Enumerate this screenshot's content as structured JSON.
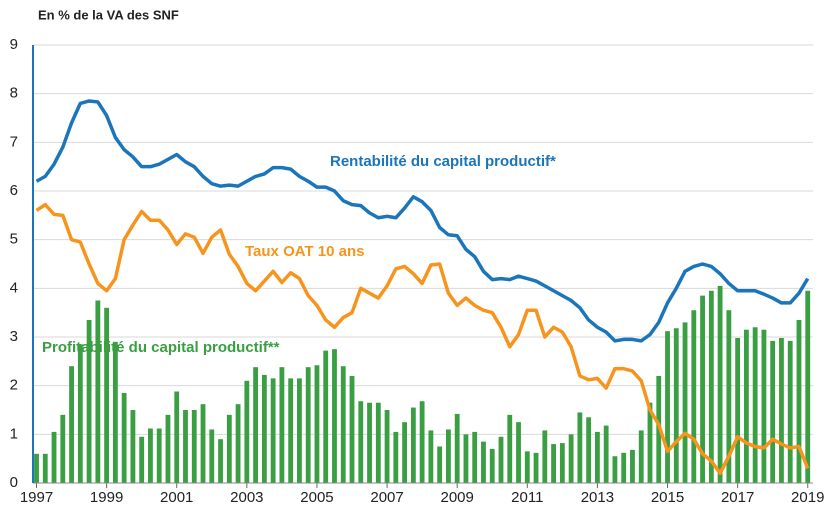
{
  "chart_data": {
    "type": "bar-line",
    "title": "En % de la VA des SNF",
    "x": [
      1997,
      1997.25,
      1997.5,
      1997.75,
      1998,
      1998.25,
      1998.5,
      1998.75,
      1999,
      1999.25,
      1999.5,
      1999.75,
      2000,
      2000.25,
      2000.5,
      2000.75,
      2001,
      2001.25,
      2001.5,
      2001.75,
      2002,
      2002.25,
      2002.5,
      2002.75,
      2003,
      2003.25,
      2003.5,
      2003.75,
      2004,
      2004.25,
      2004.5,
      2004.75,
      2005,
      2005.25,
      2005.5,
      2005.75,
      2006,
      2006.25,
      2006.5,
      2006.75,
      2007,
      2007.25,
      2007.5,
      2007.75,
      2008,
      2008.25,
      2008.5,
      2008.75,
      2009,
      2009.25,
      2009.5,
      2009.75,
      2010,
      2010.25,
      2010.5,
      2010.75,
      2011,
      2011.25,
      2011.5,
      2011.75,
      2012,
      2012.25,
      2012.5,
      2012.75,
      2013,
      2013.25,
      2013.5,
      2013.75,
      2014,
      2014.25,
      2014.5,
      2014.75,
      2015,
      2015.25,
      2015.5,
      2015.75,
      2016,
      2016.25,
      2016.5,
      2016.75,
      2017,
      2017.25,
      2017.5,
      2017.75,
      2018,
      2018.25,
      2018.5,
      2018.75,
      2019
    ],
    "series": [
      {
        "name": "Rentabilité du capital productif*",
        "kind": "line",
        "color": "#1b75bb",
        "values": [
          6.2,
          6.3,
          6.55,
          6.9,
          7.4,
          7.8,
          7.85,
          7.83,
          7.55,
          7.1,
          6.85,
          6.7,
          6.5,
          6.5,
          6.55,
          6.65,
          6.75,
          6.6,
          6.5,
          6.3,
          6.15,
          6.1,
          6.12,
          6.1,
          6.2,
          6.3,
          6.35,
          6.48,
          6.48,
          6.45,
          6.3,
          6.2,
          6.08,
          6.08,
          6.0,
          5.8,
          5.72,
          5.7,
          5.55,
          5.45,
          5.48,
          5.45,
          5.65,
          5.88,
          5.78,
          5.6,
          5.25,
          5.1,
          5.08,
          4.8,
          4.65,
          4.35,
          4.18,
          4.2,
          4.18,
          4.25,
          4.2,
          4.15,
          4.05,
          3.95,
          3.85,
          3.75,
          3.6,
          3.35,
          3.2,
          3.1,
          2.92,
          2.95,
          2.95,
          2.92,
          3.05,
          3.3,
          3.7,
          4.0,
          4.35,
          4.45,
          4.5,
          4.45,
          4.3,
          4.1,
          3.95,
          3.95,
          3.95,
          3.88,
          3.8,
          3.7,
          3.7,
          3.9,
          4.2
        ]
      },
      {
        "name": "Taux OAT 10 ans",
        "kind": "line",
        "color": "#f7941d",
        "values": [
          5.6,
          5.72,
          5.52,
          5.5,
          5.0,
          4.95,
          4.5,
          4.1,
          3.95,
          4.2,
          5.0,
          5.3,
          5.58,
          5.4,
          5.4,
          5.2,
          4.9,
          5.12,
          5.05,
          4.72,
          5.05,
          5.2,
          4.7,
          4.45,
          4.1,
          3.95,
          4.15,
          4.35,
          4.12,
          4.32,
          4.2,
          3.85,
          3.65,
          3.35,
          3.2,
          3.4,
          3.5,
          4.0,
          3.9,
          3.8,
          4.05,
          4.4,
          4.45,
          4.3,
          4.1,
          4.48,
          4.5,
          3.9,
          3.65,
          3.8,
          3.65,
          3.55,
          3.5,
          3.2,
          2.8,
          3.05,
          3.55,
          3.55,
          3.0,
          3.2,
          3.1,
          2.8,
          2.2,
          2.12,
          2.15,
          1.95,
          2.35,
          2.35,
          2.3,
          2.1,
          1.5,
          1.2,
          0.65,
          0.85,
          1.02,
          0.9,
          0.6,
          0.45,
          0.2,
          0.55,
          0.95,
          0.82,
          0.75,
          0.72,
          0.9,
          0.8,
          0.72,
          0.75,
          0.3
        ]
      },
      {
        "name": "Profitabilité du capital productif**",
        "kind": "bar",
        "color": "#3a9e43",
        "values": [
          0.6,
          0.6,
          1.05,
          1.4,
          2.4,
          2.85,
          3.35,
          3.75,
          3.6,
          2.9,
          1.85,
          1.5,
          0.95,
          1.12,
          1.12,
          1.4,
          1.88,
          1.5,
          1.5,
          1.62,
          1.1,
          0.9,
          1.4,
          1.62,
          2.1,
          2.38,
          2.22,
          2.15,
          2.38,
          2.15,
          2.15,
          2.38,
          2.42,
          2.72,
          2.75,
          2.4,
          2.2,
          1.68,
          1.65,
          1.65,
          1.5,
          1.05,
          1.25,
          1.55,
          1.68,
          1.08,
          0.75,
          1.1,
          1.42,
          1.0,
          1.05,
          0.85,
          0.7,
          0.95,
          1.4,
          1.25,
          0.65,
          0.62,
          1.08,
          0.8,
          0.82,
          1.0,
          1.45,
          1.35,
          1.05,
          1.18,
          0.55,
          0.62,
          0.68,
          1.08,
          1.65,
          2.2,
          3.12,
          3.18,
          3.3,
          3.55,
          3.85,
          3.95,
          4.05,
          3.55,
          2.98,
          3.15,
          3.2,
          3.15,
          2.92,
          2.98,
          2.92,
          3.35,
          3.95
        ]
      }
    ],
    "xlim": [
      1996.9,
      2019.15
    ],
    "xticks": [
      1997,
      1999,
      2001,
      2003,
      2005,
      2007,
      2009,
      2011,
      2013,
      2015,
      2017,
      2019
    ],
    "ylim": [
      0,
      9
    ],
    "yticks": [
      0,
      1,
      2,
      3,
      4,
      5,
      6,
      7,
      8,
      9
    ],
    "grid": true
  }
}
